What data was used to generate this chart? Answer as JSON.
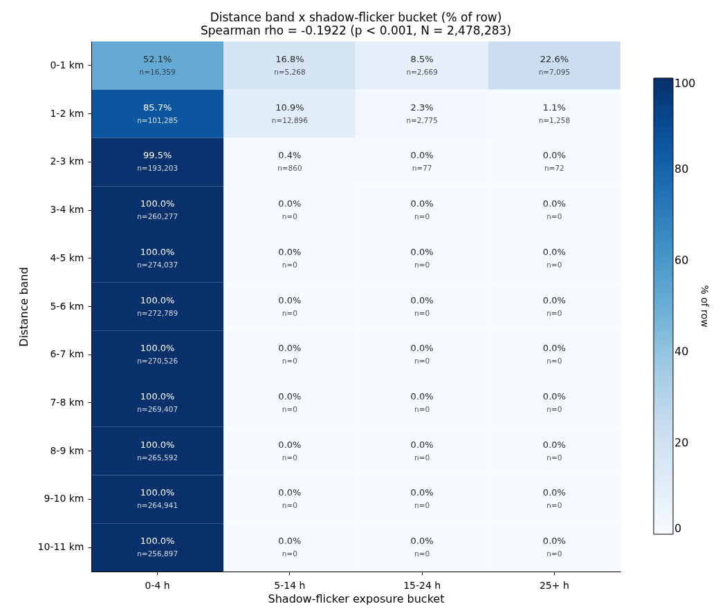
{
  "chart_data": {
    "type": "heatmap",
    "title": "Distance band x shadow-flicker bucket (% of row)",
    "subtitle": "Spearman rho = -0.1922 (p < 0.001, N = 2,478,283)",
    "xlabel": "Shadow-flicker exposure bucket",
    "ylabel": "Distance band",
    "clabel": "% of row",
    "categories": [
      "0-4 h",
      "5-14 h",
      "15-24 h",
      "25+ h"
    ],
    "y_categories": [
      "0-1 km",
      "1-2 km",
      "2-3 km",
      "3-4 km",
      "4-5 km",
      "5-6 km",
      "6-7 km",
      "7-8 km",
      "8-9 km",
      "9-10 km",
      "10-11 km"
    ],
    "cells": [
      [
        52.1,
        16.8,
        8.5,
        22.6
      ],
      [
        85.7,
        10.9,
        2.3,
        1.1
      ],
      [
        99.5,
        0.4,
        0.0,
        0.0
      ],
      [
        100.0,
        0.0,
        0.0,
        0.0
      ],
      [
        100.0,
        0.0,
        0.0,
        0.0
      ],
      [
        100.0,
        0.0,
        0.0,
        0.0
      ],
      [
        100.0,
        0.0,
        0.0,
        0.0
      ],
      [
        100.0,
        0.0,
        0.0,
        0.0
      ],
      [
        100.0,
        0.0,
        0.0,
        0.0
      ],
      [
        100.0,
        0.0,
        0.0,
        0.0
      ],
      [
        100.0,
        0.0,
        0.0,
        0.0
      ]
    ],
    "cell_labels": [
      [
        "52.1%\nn=16,359",
        "16.8%\nn=5,268",
        "8.5%\nn=2,669",
        "22.6%\nn=7,095"
      ],
      [
        "85.7%\nn=101,285",
        "10.9%\nn=12,896",
        "2.3%\nn=2,775",
        "1.1%\nn=1,258"
      ],
      [
        "99.5%\nn=193,203",
        "0.4%\nn=860",
        "0.0%\nn=77",
        "0.0%\nn=72"
      ],
      [
        "100.0%\nn=260,277",
        "0.0%\nn=0",
        "0.0%\nn=0",
        "0.0%\nn=0"
      ],
      [
        "100.0%\nn=274,037",
        "0.0%\nn=0",
        "0.0%\nn=0",
        "0.0%\nn=0"
      ],
      [
        "100.0%\nn=272,789",
        "0.0%\nn=0",
        "0.0%\nn=0",
        "0.0%\nn=0"
      ],
      [
        "100.0%\nn=270,526",
        "0.0%\nn=0",
        "0.0%\nn=0",
        "0.0%\nn=0"
      ],
      [
        "100.0%\nn=269,407",
        "0.0%\nn=0",
        "0.0%\nn=0",
        "0.0%\nn=0"
      ],
      [
        "100.0%\nn=265,592",
        "0.0%\nn=0",
        "0.0%\nn=0",
        "0.0%\nn=0"
      ],
      [
        "100.0%\nn=264,941",
        "0.0%\nn=0",
        "0.0%\nn=0",
        "0.0%\nn=0"
      ],
      [
        "100.0%\nn=256,897",
        "0.0%\nn=0",
        "0.0%\nn=0",
        "0.0%\nn=0"
      ]
    ],
    "clim": [
      0,
      100
    ],
    "cticks": [
      0,
      20,
      40,
      60,
      80,
      100
    ]
  }
}
